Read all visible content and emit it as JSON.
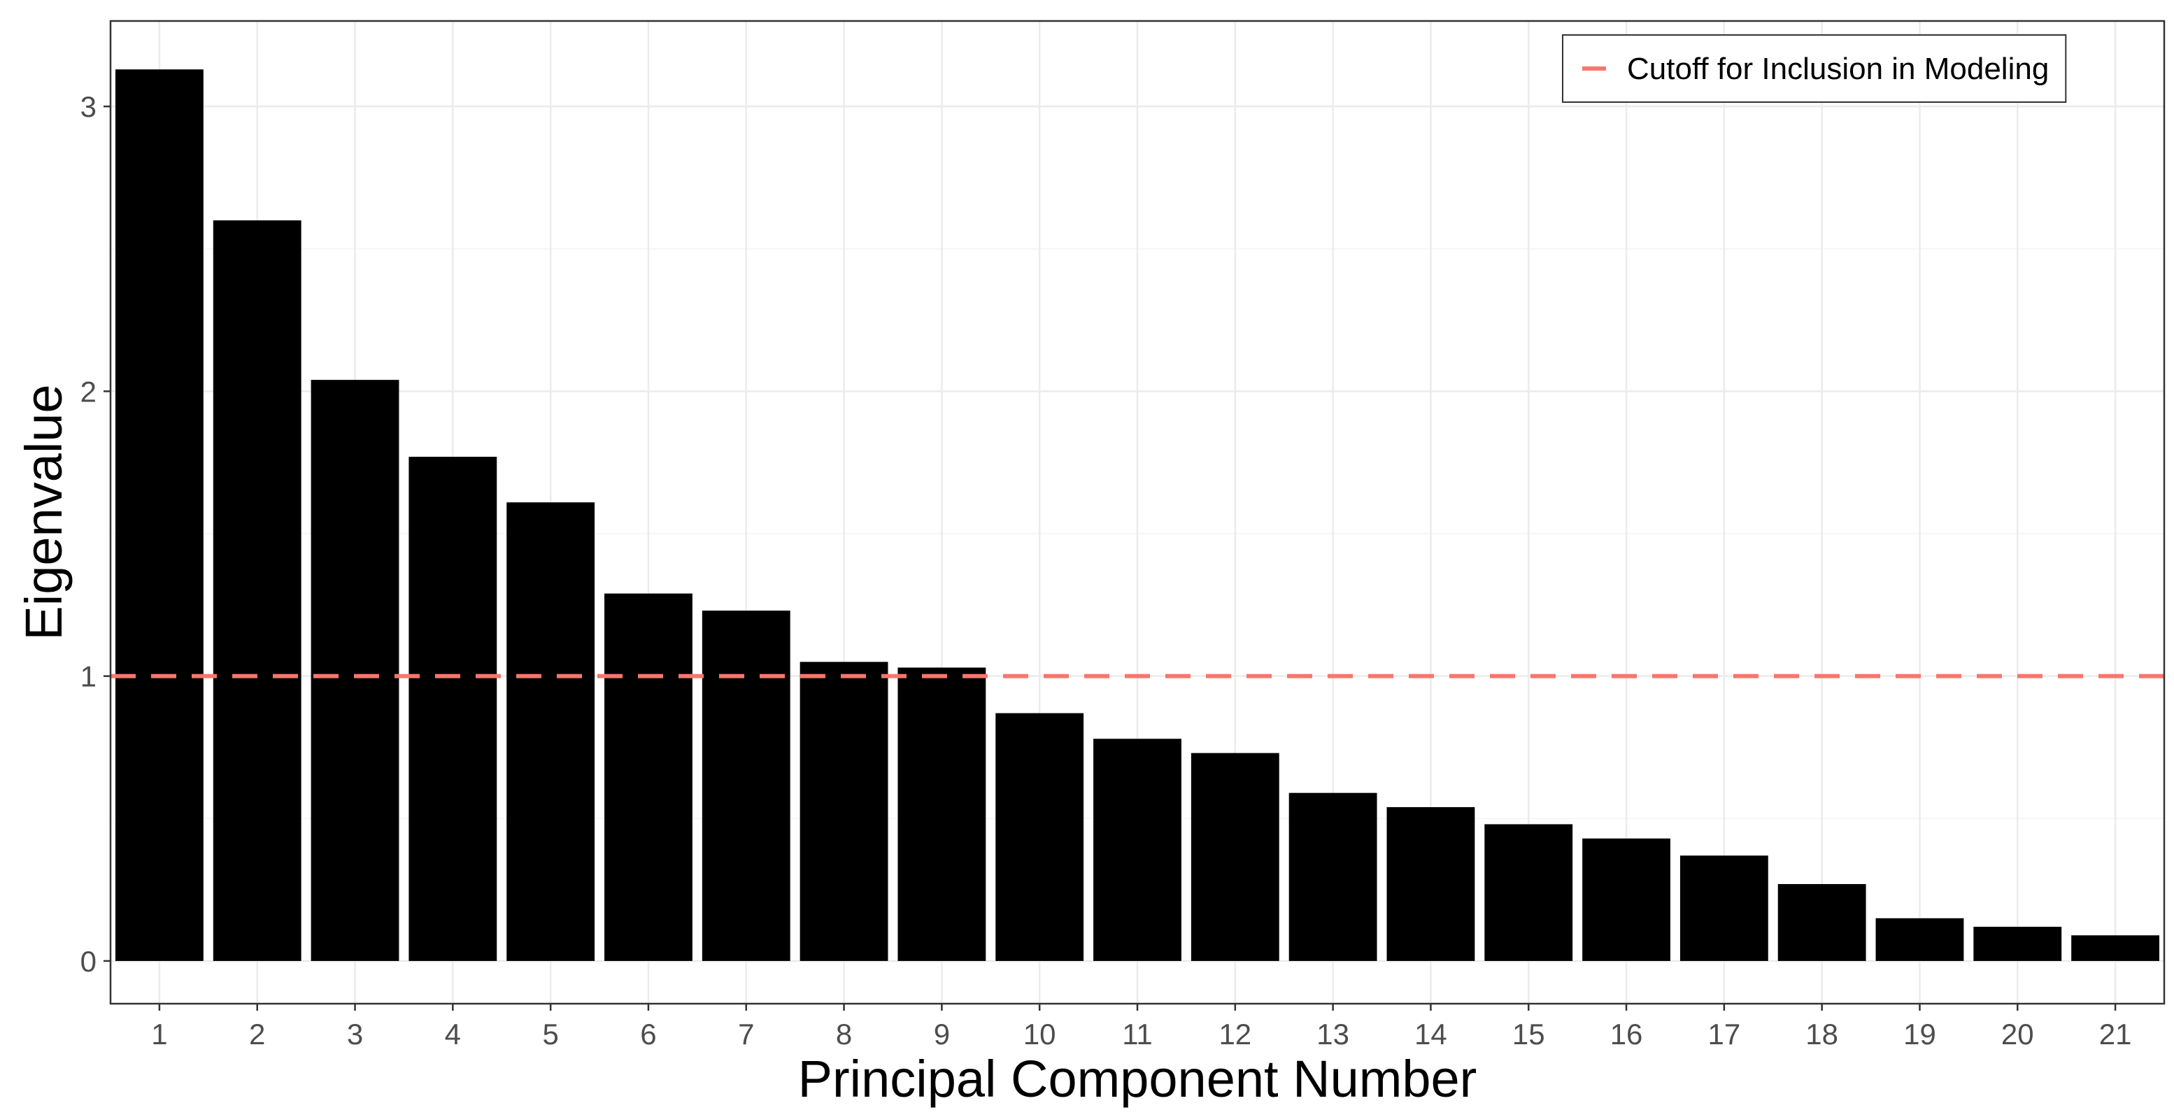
{
  "chart_data": {
    "type": "bar",
    "title": "",
    "xlabel": "Principal Component Number",
    "ylabel": "Eigenvalue",
    "categories": [
      "1",
      "2",
      "3",
      "4",
      "5",
      "6",
      "7",
      "8",
      "9",
      "10",
      "11",
      "12",
      "13",
      "14",
      "15",
      "16",
      "17",
      "18",
      "19",
      "20",
      "21"
    ],
    "values": [
      3.13,
      2.6,
      2.04,
      1.77,
      1.61,
      1.29,
      1.23,
      1.05,
      1.03,
      0.87,
      0.78,
      0.73,
      0.59,
      0.54,
      0.48,
      0.43,
      0.37,
      0.27,
      0.15,
      0.12,
      0.09
    ],
    "ylim": [
      -0.15,
      3.3
    ],
    "yticks": [
      0,
      1,
      2,
      3
    ],
    "grid": true,
    "bar_color": "#000000",
    "reference_line": {
      "y": 1,
      "label": "Cutoff for Inclusion in Modeling",
      "color": "#F8766D",
      "style": "dashed"
    },
    "legend": {
      "position": "top-right",
      "entries": [
        "Cutoff for Inclusion in Modeling"
      ]
    }
  }
}
